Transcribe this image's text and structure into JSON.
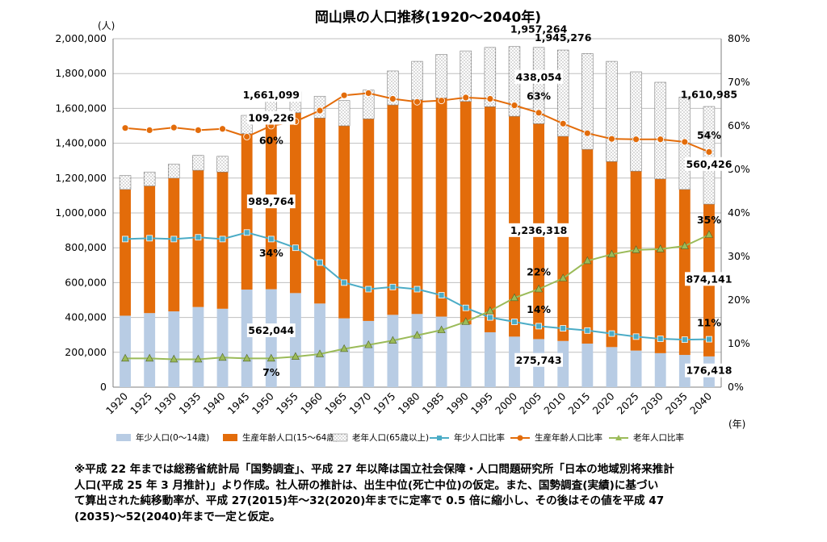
{
  "chart_data": {
    "type": "bar",
    "title": "岡山県の人口推移(1920～2040年)",
    "y_left_unit": "(人)",
    "y_right_unit": "",
    "x_unit": "(年)",
    "ylim_left": [
      0,
      2000000
    ],
    "ylim_right": [
      0,
      80
    ],
    "y_left_ticks": [
      "0",
      "200,000",
      "400,000",
      "600,000",
      "800,000",
      "1,000,000",
      "1,200,000",
      "1,400,000",
      "1,600,000",
      "1,800,000",
      "2,000,000"
    ],
    "y_right_ticks": [
      "0%",
      "10%",
      "20%",
      "30%",
      "40%",
      "50%",
      "60%",
      "70%",
      "80%"
    ],
    "categories": [
      "1920",
      "1925",
      "1930",
      "1935",
      "1940",
      "1945",
      "1950",
      "1955",
      "1960",
      "1965",
      "1970",
      "1975",
      "1980",
      "1985",
      "1990",
      "1995",
      "2000",
      "2005",
      "2010",
      "2015",
      "2020",
      "2025",
      "2030",
      "2035",
      "2040"
    ],
    "bar_series": [
      {
        "name": "年少人口(0～14歳)",
        "color": "#b8cce4",
        "values": [
          410000,
          425000,
          435000,
          460000,
          450000,
          560000,
          562044,
          540000,
          480000,
          395000,
          380000,
          415000,
          420000,
          405000,
          360000,
          315000,
          290000,
          275743,
          265000,
          250000,
          230000,
          210000,
          195000,
          185000,
          176418
        ]
      },
      {
        "name": "生産年齢人口(15～64歳)",
        "color": "#e36c0a",
        "values": [
          725000,
          730000,
          765000,
          785000,
          785000,
          895000,
          989764,
          1035000,
          1065000,
          1105000,
          1160000,
          1205000,
          1230000,
          1255000,
          1280000,
          1295000,
          1265000,
          1236318,
          1175000,
          1115000,
          1065000,
          1030000,
          1000000,
          950000,
          874141
        ]
      },
      {
        "name": "老年人口(65歳以上)",
        "color": "#ffffff",
        "values": [
          80000,
          80000,
          80000,
          85000,
          90000,
          105000,
          109226,
          120000,
          125000,
          145000,
          165000,
          195000,
          220000,
          250000,
          290000,
          340000,
          400000,
          438054,
          495000,
          550000,
          575000,
          570000,
          555000,
          530000,
          560426
        ]
      }
    ],
    "totals": [
      1215000,
      1235000,
      1280000,
      1330000,
      1325000,
      1560000,
      1661099,
      1695000,
      1670000,
      1645000,
      1705000,
      1815000,
      1870000,
      1910000,
      1930000,
      1950000,
      1955000,
      1957264,
      1945276,
      1915000,
      1870000,
      1810000,
      1750000,
      1665000,
      1610985
    ],
    "line_series": [
      {
        "name": "年少人口比率",
        "color": "#4bacc6",
        "marker": "square",
        "values": [
          34,
          34.2,
          34,
          34.4,
          34,
          35.5,
          34,
          32,
          28.6,
          24,
          22.5,
          23,
          22.5,
          21.1,
          18.2,
          16,
          15,
          14,
          13.5,
          13,
          12.3,
          11.6,
          11.1,
          10.9,
          11
        ]
      },
      {
        "name": "生産年齢人口比率",
        "color": "#e36c0a",
        "marker": "circle",
        "values": [
          59.5,
          59,
          59.6,
          59,
          59.3,
          57.5,
          60,
          61,
          63.5,
          67,
          67.5,
          66.2,
          65.5,
          65.8,
          66.5,
          66.2,
          64.7,
          63,
          60.5,
          58.3,
          57,
          56.9,
          56.9,
          56.3,
          54
        ]
      },
      {
        "name": "老年人口比率",
        "color": "#9bbb59",
        "marker": "triangle",
        "values": [
          6.6,
          6.6,
          6.4,
          6.4,
          6.8,
          6.6,
          6.6,
          7,
          7.6,
          8.8,
          9.7,
          10.7,
          11.9,
          13.1,
          15,
          17.5,
          20.5,
          22.5,
          25,
          29,
          30.5,
          31.5,
          31.7,
          32.4,
          35
        ]
      }
    ],
    "annotations": [
      {
        "text": "1,661,099",
        "cat": "1950",
        "kind": "num",
        "val": 1661099,
        "box": true
      },
      {
        "text": "109,226",
        "cat": "1950",
        "kind": "num",
        "val": 1530000,
        "box": true
      },
      {
        "text": "60%",
        "cat": "1950",
        "kind": "num",
        "val": 1400000,
        "box": false
      },
      {
        "text": "989,764",
        "cat": "1950",
        "kind": "num",
        "val": 1050000,
        "box": true
      },
      {
        "text": "34%",
        "cat": "1950",
        "kind": "num",
        "val": 755000,
        "box": false
      },
      {
        "text": "562,044",
        "cat": "1950",
        "kind": "num",
        "val": 310000,
        "box": true
      },
      {
        "text": "7%",
        "cat": "1950",
        "kind": "num",
        "val": 70000,
        "box": false
      },
      {
        "text": "1,957,264",
        "cat": "2005",
        "kind": "num",
        "val": 2040000,
        "box": false
      },
      {
        "text": "1,945,276",
        "cat": "2010",
        "kind": "num",
        "val": 1990000,
        "box": false
      },
      {
        "text": "438,054",
        "cat": "2005",
        "kind": "num",
        "val": 1765000,
        "box": true
      },
      {
        "text": "63%",
        "cat": "2005",
        "kind": "num",
        "val": 1655000,
        "box": false
      },
      {
        "text": "1,236,318",
        "cat": "2005",
        "kind": "num",
        "val": 885000,
        "box": true
      },
      {
        "text": "22%",
        "cat": "2005",
        "kind": "num",
        "val": 645000,
        "box": false
      },
      {
        "text": "14%",
        "cat": "2005",
        "kind": "num",
        "val": 430000,
        "box": false
      },
      {
        "text": "275,743",
        "cat": "2005",
        "kind": "num",
        "val": 140000,
        "box": true
      },
      {
        "text": "1,610,985",
        "cat": "2040",
        "kind": "num",
        "val": 1665000,
        "box": false
      },
      {
        "text": "54%",
        "cat": "2040",
        "kind": "num",
        "val": 1430000,
        "box": false
      },
      {
        "text": "560,426",
        "cat": "2040",
        "kind": "num",
        "val": 1265000,
        "box": true
      },
      {
        "text": "35%",
        "cat": "2040",
        "kind": "num",
        "val": 945000,
        "box": false
      },
      {
        "text": "874,141",
        "cat": "2040",
        "kind": "num",
        "val": 605000,
        "box": true
      },
      {
        "text": "11%",
        "cat": "2040",
        "kind": "num",
        "val": 355000,
        "box": false
      },
      {
        "text": "176,418",
        "cat": "2040",
        "kind": "num",
        "val": 80000,
        "box": true
      }
    ]
  },
  "note": {
    "line1": "※平成 22 年までは総務省統計局「国勢調査」、平成 27 年以降は国立社会保障・人口問題研究所「日本の地域別将来推計",
    "line2": "人口(平成 25 年 3 月推計)」より作成。社人研の推計は、出生中位(死亡中位)の仮定。また、国勢調査(実績)に基づい",
    "line3": "て算出された純移動率が、平成  27(2015)年～32(2020)年までに定率で  0.5  倍に縮小し、その後はその値を平成  47",
    "line4": "(2035)～52(2040)年まで一定と仮定。"
  }
}
